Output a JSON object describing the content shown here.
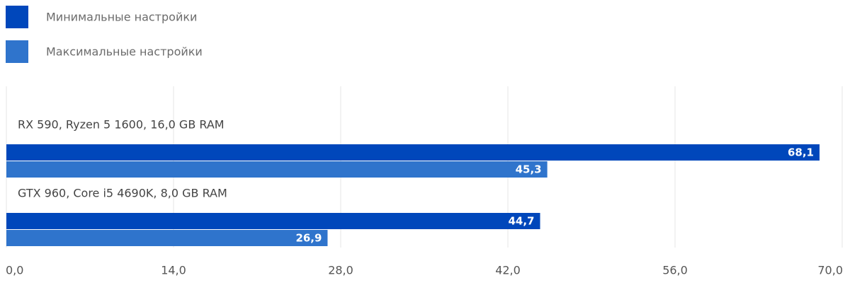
{
  "chart_data": {
    "type": "hbar",
    "categories": [
      "RX 590, Ryzen 5 1600, 16,0 GB RAM",
      "GTX 960, Core i5 4690K, 8,0 GB RAM"
    ],
    "series": [
      {
        "name": "Минимальные настройки",
        "color": "#0047bb",
        "values": [
          68.1,
          44.7
        ],
        "value_labels": [
          "68,1",
          "44,7"
        ]
      },
      {
        "name": "Максимальные настройки",
        "color": "#2f74cc",
        "values": [
          45.3,
          26.9
        ],
        "value_labels": [
          "45,3",
          "26,9"
        ]
      }
    ],
    "xlim": [
      0,
      70
    ],
    "xticks": [
      {
        "value": 0,
        "label": "0,0"
      },
      {
        "value": 14,
        "label": "14,0"
      },
      {
        "value": 28,
        "label": "28,0"
      },
      {
        "value": 42,
        "label": "42,0"
      },
      {
        "value": 56,
        "label": "56,0"
      },
      {
        "value": 70,
        "label": "70,0"
      }
    ],
    "grid": true
  }
}
